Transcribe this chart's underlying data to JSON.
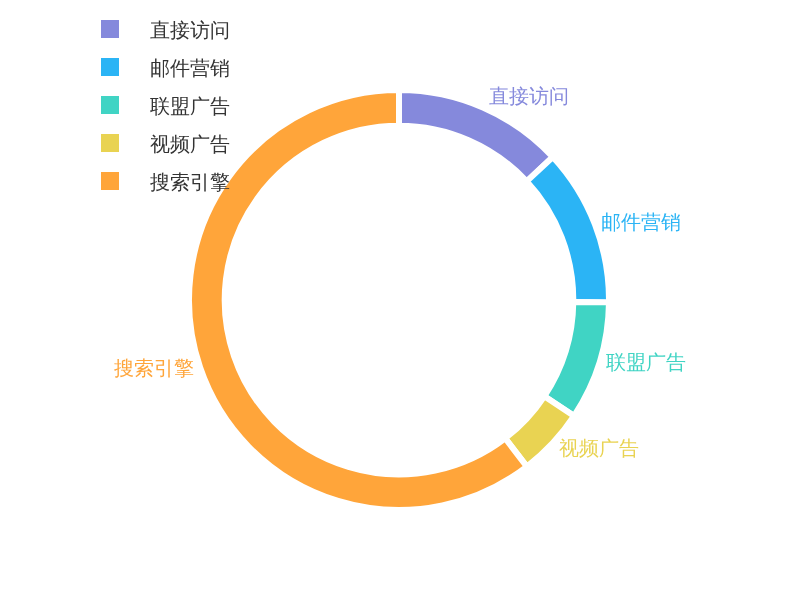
{
  "chart_data": {
    "type": "donut",
    "categories": [
      "直接访问",
      "邮件营销",
      "联盟广告",
      "视频广告",
      "搜索引擎"
    ],
    "values": [
      13.08,
      12.1,
      9.13,
      5.27,
      60.42
    ],
    "colors": [
      "#8589dc",
      "#2bb4f5",
      "#40d4c4",
      "#e9d352",
      "#ffa53a"
    ],
    "legend": "top left"
  }
}
